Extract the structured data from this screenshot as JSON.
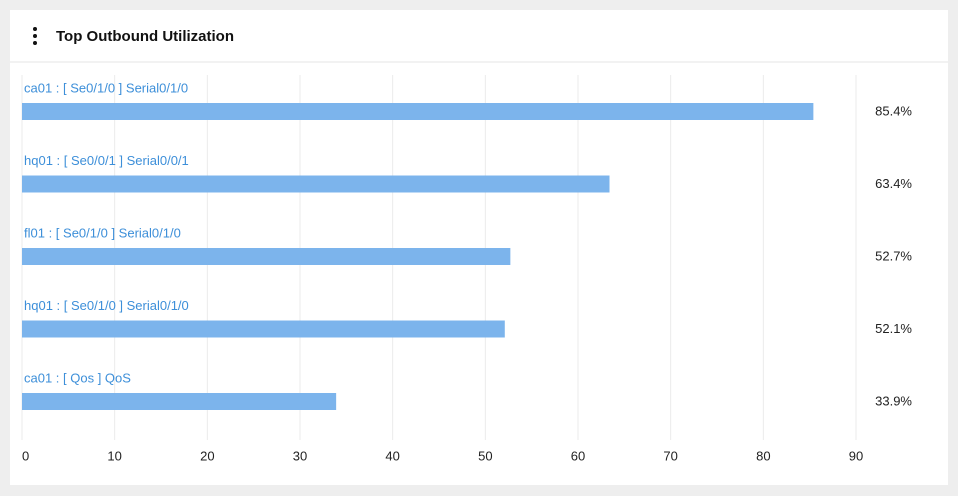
{
  "chart_data": {
    "type": "bar",
    "orientation": "horizontal",
    "title": "Top Outbound Utilization",
    "categories": [
      "ca01 : [ Se0/1/0 ] Serial0/1/0",
      "hq01 : [ Se0/0/1 ] Serial0/0/1",
      "fl01 : [ Se0/1/0 ] Serial0/1/0",
      "hq01 : [ Se0/1/0 ] Serial0/1/0",
      "ca01 : [ Qos ] QoS"
    ],
    "values": [
      85.4,
      63.4,
      52.7,
      52.1,
      33.9
    ],
    "value_labels": [
      "85.4%",
      "63.4%",
      "52.7%",
      "52.1%",
      "33.9%"
    ],
    "color": "#7cb4ec",
    "xlim": [
      0,
      90
    ],
    "xticks": [
      0,
      10,
      20,
      30,
      40,
      50,
      60,
      70,
      80,
      90
    ],
    "grid": true
  }
}
